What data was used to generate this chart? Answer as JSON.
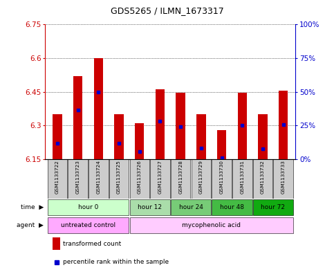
{
  "title": "GDS5265 / ILMN_1673317",
  "samples": [
    "GSM1133722",
    "GSM1133723",
    "GSM1133724",
    "GSM1133725",
    "GSM1133726",
    "GSM1133727",
    "GSM1133728",
    "GSM1133729",
    "GSM1133730",
    "GSM1133731",
    "GSM1133732",
    "GSM1133733"
  ],
  "bar_tops": [
    6.35,
    6.52,
    6.6,
    6.35,
    6.31,
    6.46,
    6.445,
    6.35,
    6.28,
    6.445,
    6.35,
    6.455
  ],
  "bar_bottom": 6.15,
  "blue_marker_values": [
    6.22,
    6.37,
    6.45,
    6.22,
    6.185,
    6.32,
    6.295,
    6.2,
    6.155,
    6.3,
    6.195,
    6.305
  ],
  "ylim": [
    6.15,
    6.75
  ],
  "yticks_left": [
    6.15,
    6.3,
    6.45,
    6.6,
    6.75
  ],
  "yticks_right_vals": [
    0,
    25,
    50,
    75,
    100
  ],
  "yticks_right_labels": [
    "0%",
    "25%",
    "50%",
    "75%",
    "100%"
  ],
  "right_axis_color": "#0000cc",
  "left_axis_color": "#cc0000",
  "bar_color": "#cc0000",
  "blue_color": "#0000cc",
  "time_groups": [
    {
      "label": "hour 0",
      "indices": [
        0,
        1,
        2,
        3
      ],
      "color": "#ccffcc"
    },
    {
      "label": "hour 12",
      "indices": [
        4,
        5
      ],
      "color": "#aaddaa"
    },
    {
      "label": "hour 24",
      "indices": [
        6,
        7
      ],
      "color": "#77cc77"
    },
    {
      "label": "hour 48",
      "indices": [
        8,
        9
      ],
      "color": "#44bb44"
    },
    {
      "label": "hour 72",
      "indices": [
        10,
        11
      ],
      "color": "#11aa11"
    }
  ],
  "agent_groups": [
    {
      "label": "untreated control",
      "indices": [
        0,
        1,
        2,
        3
      ],
      "color": "#ffaaff"
    },
    {
      "label": "mycophenolic acid",
      "indices": [
        4,
        5,
        6,
        7,
        8,
        9,
        10,
        11
      ],
      "color": "#ffccff"
    }
  ],
  "legend_items": [
    {
      "color": "#cc0000",
      "label": "transformed count"
    },
    {
      "color": "#0000cc",
      "label": "percentile rank within the sample"
    }
  ],
  "bg_sample_color": "#cccccc",
  "bar_width": 0.45
}
